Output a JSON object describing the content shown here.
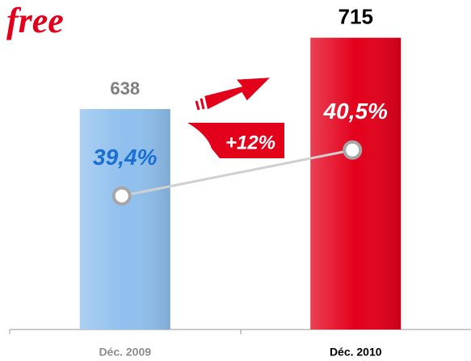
{
  "chart_data": {
    "type": "bar",
    "logo": "free",
    "categories": [
      "Déc. 2009",
      "Déc. 2010"
    ],
    "values": [
      638,
      715
    ],
    "colors": [
      "#8fc0ee",
      "#e3001b"
    ],
    "ylim": [
      400,
      720
    ],
    "line": {
      "values": [
        39.4,
        40.5
      ],
      "value_labels": [
        "39,4%",
        "40,5%"
      ],
      "axis": "y2",
      "color": "#d0d0d0",
      "label_colors": [
        "#1a6fd0",
        "#ffffff"
      ]
    },
    "y2lim": [
      36.2,
      43.3
    ],
    "annotation": "+12%"
  }
}
